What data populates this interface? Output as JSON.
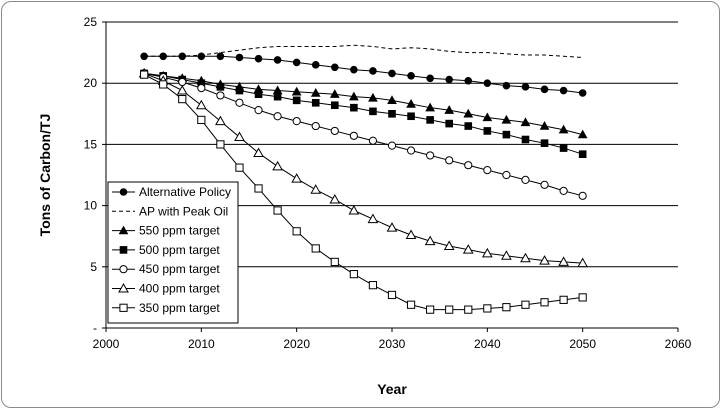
{
  "chart_data": {
    "type": "line",
    "title": "",
    "xlabel": "Year",
    "ylabel": "Tons of Carbon/TJ",
    "xlim": [
      2000,
      2060
    ],
    "ylim": [
      0,
      25
    ],
    "xticks": [
      2000,
      2010,
      2020,
      2030,
      2040,
      2050,
      2060
    ],
    "yticks": [
      0,
      5,
      10,
      15,
      20,
      25
    ],
    "ytick_labels": [
      "-",
      "5",
      "10",
      "15",
      "20",
      "25"
    ],
    "grid": "horizontal",
    "legend_position": "left-lower",
    "series": [
      {
        "name": "Alternative Policy",
        "marker": "circle-filled",
        "line": "solid",
        "x": [
          2004,
          2006,
          2008,
          2010,
          2012,
          2014,
          2016,
          2018,
          2020,
          2022,
          2024,
          2026,
          2028,
          2030,
          2032,
          2034,
          2036,
          2038,
          2040,
          2042,
          2044,
          2046,
          2048,
          2050
        ],
        "y": [
          22.2,
          22.2,
          22.2,
          22.2,
          22.2,
          22.1,
          22.0,
          21.9,
          21.7,
          21.5,
          21.3,
          21.1,
          21.0,
          20.8,
          20.6,
          20.4,
          20.3,
          20.2,
          20.0,
          19.8,
          19.7,
          19.5,
          19.4,
          19.2
        ]
      },
      {
        "name": "AP with Peak Oil",
        "marker": "none",
        "line": "dashed",
        "x": [
          2004,
          2008,
          2010,
          2012,
          2014,
          2016,
          2018,
          2020,
          2022,
          2024,
          2026,
          2028,
          2030,
          2032,
          2034,
          2036,
          2038,
          2040,
          2042,
          2044,
          2046,
          2048,
          2050
        ],
        "y": [
          22.2,
          22.2,
          22.3,
          22.5,
          22.7,
          22.9,
          23.0,
          23.0,
          23.0,
          23.0,
          23.1,
          23.0,
          22.8,
          22.9,
          22.8,
          22.6,
          22.5,
          22.5,
          22.4,
          22.3,
          22.3,
          22.2,
          22.1
        ]
      },
      {
        "name": "550 ppm target",
        "marker": "triangle-filled",
        "line": "solid",
        "x": [
          2004,
          2006,
          2008,
          2010,
          2012,
          2014,
          2016,
          2018,
          2020,
          2022,
          2024,
          2026,
          2028,
          2030,
          2032,
          2034,
          2036,
          2038,
          2040,
          2042,
          2044,
          2046,
          2048,
          2050
        ],
        "y": [
          20.8,
          20.6,
          20.4,
          20.2,
          19.9,
          19.7,
          19.5,
          19.4,
          19.3,
          19.2,
          19.1,
          18.9,
          18.8,
          18.6,
          18.3,
          18.0,
          17.8,
          17.5,
          17.2,
          17.0,
          16.8,
          16.5,
          16.2,
          15.8
        ]
      },
      {
        "name": "500 ppm target",
        "marker": "square-filled",
        "line": "solid",
        "x": [
          2004,
          2006,
          2008,
          2010,
          2012,
          2014,
          2016,
          2018,
          2020,
          2022,
          2024,
          2026,
          2028,
          2030,
          2032,
          2034,
          2036,
          2038,
          2040,
          2042,
          2044,
          2046,
          2048,
          2050
        ],
        "y": [
          20.8,
          20.6,
          20.3,
          20.0,
          19.7,
          19.4,
          19.1,
          18.9,
          18.6,
          18.4,
          18.2,
          18.0,
          17.7,
          17.5,
          17.3,
          17.0,
          16.7,
          16.5,
          16.1,
          15.8,
          15.4,
          15.1,
          14.7,
          14.2
        ]
      },
      {
        "name": "450 ppm target",
        "marker": "circle-open",
        "line": "solid",
        "x": [
          2004,
          2006,
          2008,
          2010,
          2012,
          2014,
          2016,
          2018,
          2020,
          2022,
          2024,
          2026,
          2028,
          2030,
          2032,
          2034,
          2036,
          2038,
          2040,
          2042,
          2044,
          2046,
          2048,
          2050
        ],
        "y": [
          20.8,
          20.5,
          20.1,
          19.6,
          19.0,
          18.4,
          17.8,
          17.3,
          16.9,
          16.5,
          16.1,
          15.7,
          15.3,
          14.9,
          14.5,
          14.1,
          13.7,
          13.3,
          12.9,
          12.5,
          12.1,
          11.7,
          11.2,
          10.8
        ]
      },
      {
        "name": "400 ppm target",
        "marker": "triangle-open",
        "line": "solid",
        "x": [
          2004,
          2006,
          2008,
          2010,
          2012,
          2014,
          2016,
          2018,
          2020,
          2022,
          2024,
          2026,
          2028,
          2030,
          2032,
          2034,
          2036,
          2038,
          2040,
          2042,
          2044,
          2046,
          2048,
          2050
        ],
        "y": [
          20.8,
          20.2,
          19.4,
          18.2,
          16.9,
          15.6,
          14.3,
          13.2,
          12.2,
          11.3,
          10.5,
          9.6,
          8.9,
          8.2,
          7.6,
          7.1,
          6.7,
          6.4,
          6.1,
          5.9,
          5.7,
          5.5,
          5.4,
          5.3
        ]
      },
      {
        "name": "350 ppm target",
        "marker": "square-open",
        "line": "solid",
        "x": [
          2004,
          2006,
          2008,
          2010,
          2012,
          2014,
          2016,
          2018,
          2020,
          2022,
          2024,
          2026,
          2028,
          2030,
          2032,
          2034,
          2036,
          2038,
          2040,
          2042,
          2044,
          2046,
          2048,
          2050
        ],
        "y": [
          20.7,
          19.9,
          18.7,
          17.0,
          15.0,
          13.1,
          11.4,
          9.6,
          7.9,
          6.5,
          5.4,
          4.4,
          3.5,
          2.7,
          1.9,
          1.5,
          1.5,
          1.5,
          1.6,
          1.7,
          1.9,
          2.1,
          2.3,
          2.5
        ]
      }
    ]
  }
}
